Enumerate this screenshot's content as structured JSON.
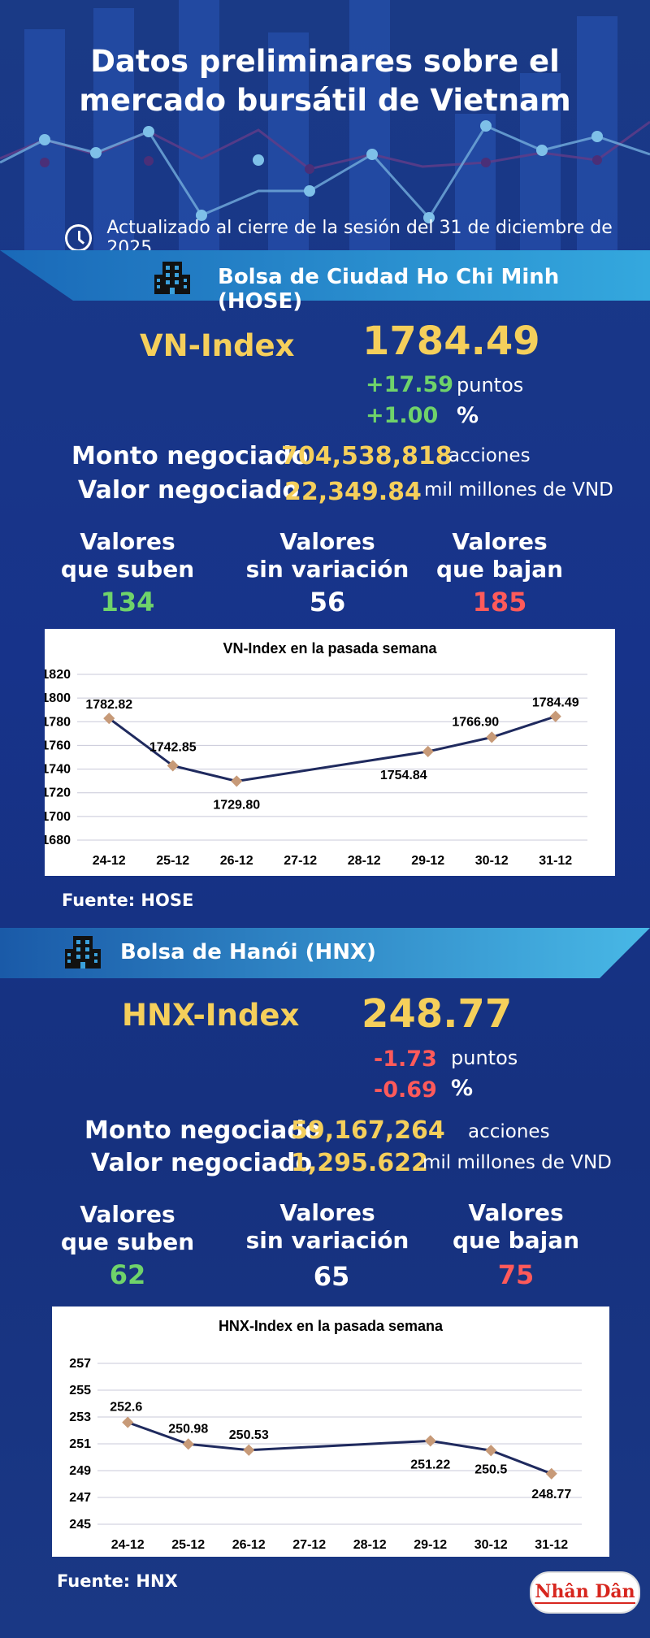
{
  "header": {
    "title_line1": "Datos preliminares sobre el",
    "title_line2": "mercado bursátil de Vietnam",
    "update_text": "Actualizado al cierre de la sesión del 31 de diciembre de 2025"
  },
  "hose": {
    "banner": "Bolsa de Ciudad Ho Chi Minh (HOSE)",
    "index_label": "VN-Index",
    "index_value": "1784.49",
    "points_change": "+17.59",
    "points_unit": "puntos",
    "pct_change": "+1.00",
    "pct_unit": "%",
    "volume_label": "Monto negociado",
    "volume_value": "704,538,818",
    "volume_unit": "acciones",
    "value_label": "Valor negociado",
    "value_value": "22,349.84",
    "value_unit": "mil millones de VND",
    "up_label_1": "Valores",
    "up_label_2": "que suben",
    "up_count": "134",
    "flat_label_1": "Valores",
    "flat_label_2": "sin variación",
    "flat_count": "56",
    "down_label_1": "Valores",
    "down_label_2": "que bajan",
    "down_count": "185",
    "source": "Fuente: HOSE"
  },
  "hnx": {
    "banner": "Bolsa de Hanói (HNX)",
    "index_label": "HNX-Index",
    "index_value": "248.77",
    "points_change": "-1.73",
    "points_unit": "puntos",
    "pct_change": "-0.69",
    "pct_unit": "%",
    "volume_label": "Monto negociado",
    "volume_value": "59,167,264",
    "volume_unit": "acciones",
    "value_label": "Valor negociado",
    "value_value": "1,295.622",
    "value_unit": "mil millones de VND",
    "up_label_1": "Valores",
    "up_label_2": "que suben",
    "up_count": "62",
    "flat_label_1": "Valores",
    "flat_label_2": "sin variación",
    "flat_count": "65",
    "down_label_1": "Valores",
    "down_label_2": "que bajan",
    "down_count": "75",
    "source": "Fuente:  HNX"
  },
  "logo_text": "Nhân Dân",
  "colors": {
    "accent": "#f5cf5b",
    "up": "#6fd36a",
    "down": "#ff5a5a",
    "line": "#1f2a5e",
    "marker": "#c79a78"
  },
  "chart_data": [
    {
      "type": "line",
      "title": "VN-Index en la pasada semana",
      "categories": [
        "24-12",
        "25-12",
        "26-12",
        "27-12",
        "28-12",
        "29-12",
        "30-12",
        "31-12"
      ],
      "values": [
        1782.82,
        1742.85,
        1729.8,
        null,
        null,
        1754.84,
        1766.9,
        1784.49
      ],
      "labels": [
        "1782.82",
        "1742.85",
        "1729.80",
        "",
        "",
        "1754.84",
        "1766.90",
        "1784.49"
      ],
      "ylim": [
        1680,
        1820
      ],
      "yticks": [
        "1820",
        "1800",
        "1780",
        "1760",
        "1740",
        "1720",
        "1700",
        "1680"
      ],
      "grid": true
    },
    {
      "type": "line",
      "title": "HNX-Index en la pasada semana",
      "categories": [
        "24-12",
        "25-12",
        "26-12",
        "27-12",
        "28-12",
        "29-12",
        "30-12",
        "31-12"
      ],
      "values": [
        252.6,
        250.98,
        250.53,
        null,
        null,
        251.22,
        250.5,
        248.77
      ],
      "labels": [
        "252.6",
        "250.98",
        "250.53",
        "",
        "",
        "251.22",
        "250.5",
        "248.77"
      ],
      "ylim": [
        245,
        257
      ],
      "yticks": [
        "257",
        "255",
        "253",
        "251",
        "249",
        "247",
        "245"
      ],
      "grid": true
    }
  ]
}
